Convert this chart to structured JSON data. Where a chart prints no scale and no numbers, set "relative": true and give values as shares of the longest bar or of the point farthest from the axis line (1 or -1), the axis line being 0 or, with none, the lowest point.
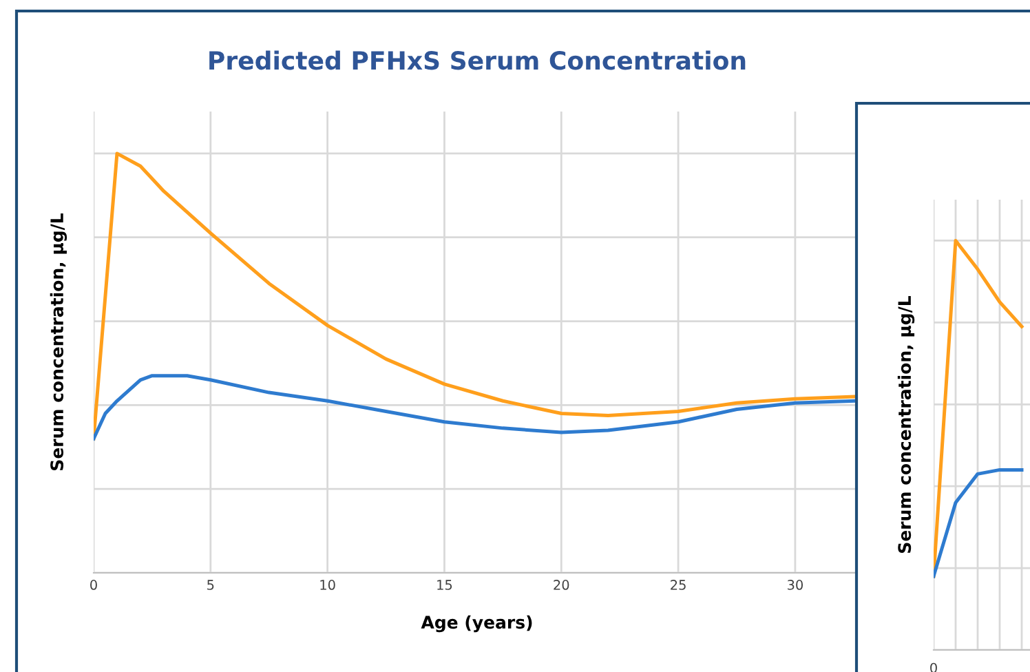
{
  "chart_data": [
    {
      "type": "line",
      "title": "Predicted PFHxS Serum Concentration",
      "xlabel": "Age (years)",
      "ylabel": "Serum concentration, µg/L",
      "relative": true,
      "grid": true,
      "legend": false,
      "xlim": [
        0,
        32.8
      ],
      "xticks": [
        0,
        5,
        10,
        15,
        20,
        25,
        30
      ],
      "series": [
        {
          "color": "#ff9f1c",
          "x": [
            0,
            1,
            2,
            3,
            5,
            7.5,
            10,
            12.5,
            15,
            17.5,
            20,
            22,
            25,
            27.5,
            30,
            32.5
          ],
          "values": [
            0.32,
            1.0,
            0.97,
            0.91,
            0.81,
            0.69,
            0.59,
            0.51,
            0.45,
            0.41,
            0.38,
            0.375,
            0.385,
            0.405,
            0.415,
            0.42
          ]
        },
        {
          "color": "#2e7bcf",
          "x": [
            0,
            0.5,
            1,
            2,
            2.5,
            4,
            5,
            7.5,
            10,
            12.5,
            15,
            17.5,
            20,
            22,
            25,
            27.5,
            30,
            32.5
          ],
          "values": [
            0.32,
            0.38,
            0.41,
            0.46,
            0.47,
            0.47,
            0.46,
            0.43,
            0.41,
            0.385,
            0.36,
            0.345,
            0.335,
            0.34,
            0.36,
            0.39,
            0.405,
            0.41
          ]
        }
      ]
    },
    {
      "type": "line",
      "ylabel": "Serum concentration, µg/L",
      "relative": true,
      "grid": true,
      "legend": false,
      "categories": [
        null,
        null,
        null,
        null,
        null
      ],
      "annotations": [
        "0"
      ],
      "series": [
        {
          "color": "#ff9f1c",
          "values": [
            0.18,
            1.0,
            0.93,
            0.85,
            0.79
          ]
        },
        {
          "color": "#2e7bcf",
          "values": [
            0.18,
            0.36,
            0.43,
            0.44,
            0.44
          ]
        }
      ]
    }
  ]
}
